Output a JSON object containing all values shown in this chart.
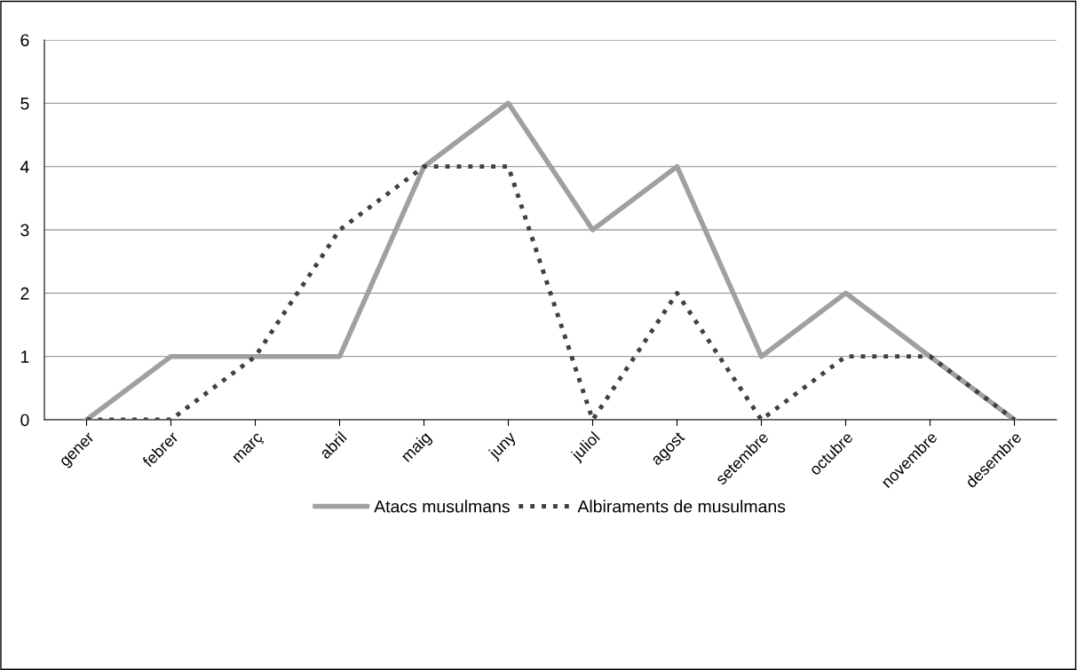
{
  "chart_data": {
    "type": "line",
    "categories": [
      "gener",
      "febrer",
      "març",
      "abril",
      "maig",
      "juny",
      "juliol",
      "agost",
      "setembre",
      "octubre",
      "novembre",
      "desembre"
    ],
    "series": [
      {
        "name": "Atacs musulmans",
        "color": "#a0a0a0",
        "line_style": "solid",
        "values": [
          0,
          1,
          1,
          1,
          4,
          5,
          3,
          4,
          1,
          2,
          1,
          0
        ]
      },
      {
        "name": "Albiraments de musulmans",
        "color": "#404040",
        "line_style": "dotted",
        "values": [
          0,
          0,
          1,
          3,
          4,
          4,
          0,
          2,
          0,
          1,
          1,
          0
        ]
      }
    ],
    "ylim": [
      0,
      6
    ],
    "yticks": [
      0,
      1,
      2,
      3,
      4,
      5,
      6
    ],
    "grid": "y",
    "legend": "bottom",
    "marker": "none"
  }
}
